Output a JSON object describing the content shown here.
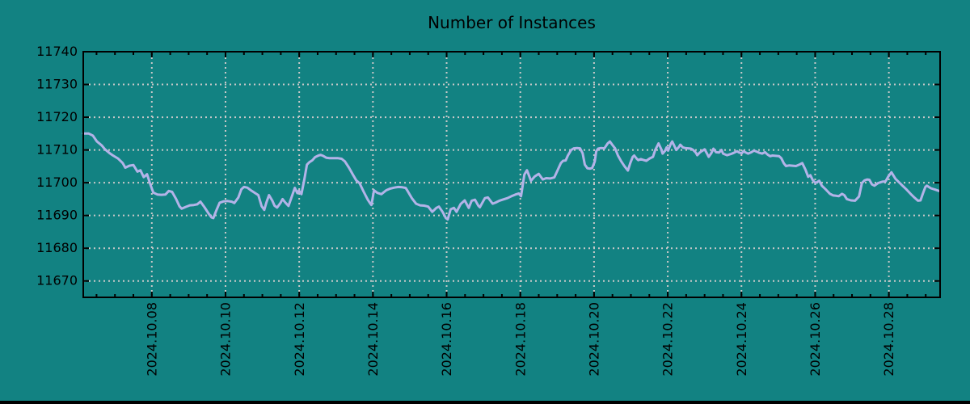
{
  "colors": {
    "background": "#128282",
    "line": "#b3b3e8",
    "grid": "#c9c9c9",
    "axis": "#000000",
    "text": "#000000"
  },
  "chart_data": {
    "type": "line",
    "title": "Number of Instances",
    "xlabel": "",
    "ylabel": "",
    "legend": "none",
    "grid": true,
    "x_unit": "decimal day of October 2024",
    "xlim": [
      6.14,
      29.39
    ],
    "ylim": [
      11665,
      11740
    ],
    "yticks": [
      {
        "value": 11670,
        "label": "11670"
      },
      {
        "value": 11680,
        "label": "11680"
      },
      {
        "value": 11690,
        "label": "11690"
      },
      {
        "value": 11700,
        "label": "11700"
      },
      {
        "value": 11710,
        "label": "11710"
      },
      {
        "value": 11720,
        "label": "11720"
      },
      {
        "value": 11730,
        "label": "11730"
      },
      {
        "value": 11740,
        "label": "11740"
      }
    ],
    "xticks": [
      {
        "value": 8,
        "label": "2024.10.08"
      },
      {
        "value": 10,
        "label": "2024.10.10"
      },
      {
        "value": 12,
        "label": "2024.10.12"
      },
      {
        "value": 14,
        "label": "2024.10.14"
      },
      {
        "value": 16,
        "label": "2024.10.16"
      },
      {
        "value": 18,
        "label": "2024.10.18"
      },
      {
        "value": 20,
        "label": "2024.10.20"
      },
      {
        "value": 22,
        "label": "2024.10.22"
      },
      {
        "value": 24,
        "label": "2024.10.24"
      },
      {
        "value": 26,
        "label": "2024.10.26"
      },
      {
        "value": 28,
        "label": "2024.10.28"
      }
    ],
    "minor_x_step": 0.5,
    "series": [
      {
        "name": "number-of-instances",
        "color": "#b3b3e8",
        "x": [
          6.14,
          6.29,
          6.4,
          6.51,
          6.64,
          6.73,
          6.86,
          6.95,
          7.08,
          7.21,
          7.28,
          7.39,
          7.5,
          7.61,
          7.69,
          7.78,
          7.87,
          7.96,
          8.04,
          8.15,
          8.26,
          8.37,
          8.46,
          8.55,
          8.66,
          8.75,
          8.81,
          8.92,
          9.03,
          9.14,
          9.23,
          9.32,
          9.43,
          9.54,
          9.62,
          9.67,
          9.75,
          9.84,
          9.95,
          10.06,
          10.17,
          10.24,
          10.35,
          10.43,
          10.5,
          10.59,
          10.7,
          10.81,
          10.89,
          10.98,
          11.05,
          11.11,
          11.18,
          11.27,
          11.33,
          11.4,
          11.49,
          11.55,
          11.62,
          11.71,
          11.79,
          11.88,
          11.95,
          11.99,
          12.06,
          12.14,
          12.21,
          12.28,
          12.36,
          12.43,
          12.52,
          12.58,
          12.65,
          12.74,
          12.82,
          12.93,
          13.04,
          13.15,
          13.24,
          13.35,
          13.46,
          13.55,
          13.64,
          13.75,
          13.86,
          13.92,
          13.96,
          14.03,
          14.12,
          14.23,
          14.36,
          14.47,
          14.58,
          14.69,
          14.8,
          14.89,
          14.95,
          15.06,
          15.17,
          15.28,
          15.39,
          15.5,
          15.61,
          15.72,
          15.79,
          15.89,
          15.98,
          16.03,
          16.11,
          16.2,
          16.27,
          16.38,
          16.49,
          16.6,
          16.68,
          16.77,
          16.86,
          16.9,
          17.04,
          17.12,
          17.25,
          17.34,
          17.43,
          17.54,
          17.65,
          17.76,
          17.87,
          17.96,
          18.02,
          18.11,
          18.18,
          18.29,
          18.39,
          18.5,
          18.61,
          18.7,
          18.81,
          18.92,
          19.01,
          19.1,
          19.16,
          19.23,
          19.29,
          19.38,
          19.45,
          19.54,
          19.62,
          19.69,
          19.75,
          19.82,
          19.89,
          19.95,
          20.02,
          20.06,
          20.11,
          20.19,
          20.28,
          20.37,
          20.43,
          20.5,
          20.57,
          20.65,
          20.74,
          20.83,
          20.92,
          20.98,
          21.05,
          21.09,
          21.16,
          21.2,
          21.27,
          21.33,
          21.42,
          21.51,
          21.6,
          21.66,
          21.75,
          21.82,
          21.86,
          21.93,
          21.97,
          22.01,
          22.08,
          22.12,
          22.19,
          22.23,
          22.3,
          22.34,
          22.41,
          22.47,
          22.56,
          22.63,
          22.69,
          22.76,
          22.8,
          22.87,
          22.93,
          23.0,
          23.07,
          23.11,
          23.18,
          23.24,
          23.31,
          23.39,
          23.46,
          23.5,
          23.61,
          23.72,
          23.79,
          23.88,
          23.94,
          24.01,
          24.05,
          24.12,
          24.18,
          24.27,
          24.34,
          24.43,
          24.49,
          24.56,
          24.64,
          24.71,
          24.78,
          24.84,
          24.93,
          25.02,
          25.08,
          25.15,
          25.21,
          25.3,
          25.39,
          25.48,
          25.57,
          25.65,
          25.74,
          25.81,
          25.87,
          25.94,
          26.01,
          26.07,
          26.11,
          26.18,
          26.29,
          26.4,
          26.49,
          26.57,
          26.64,
          26.73,
          26.79,
          26.86,
          26.97,
          27.08,
          27.19,
          27.27,
          27.34,
          27.41,
          27.47,
          27.54,
          27.61,
          27.71,
          27.82,
          27.91,
          27.98,
          28.07,
          28.18,
          28.26,
          28.37,
          28.48,
          28.59,
          28.7,
          28.79,
          28.86,
          28.92,
          28.99,
          29.03,
          29.14,
          29.25,
          29.36
        ],
        "y": [
          11715,
          11715,
          11714.4,
          11712.6,
          11711.4,
          11710.2,
          11709,
          11708.3,
          11707.4,
          11706,
          11704.6,
          11705.2,
          11705.4,
          11703.4,
          11703.8,
          11701.7,
          11702.6,
          11699.5,
          11697,
          11696.4,
          11696.3,
          11696.4,
          11697.5,
          11697.2,
          11695,
          11692.8,
          11692.1,
          11692.6,
          11693.1,
          11693.2,
          11693.4,
          11694.2,
          11692.5,
          11690.6,
          11689.4,
          11689.2,
          11691.5,
          11693.9,
          11694.3,
          11694.4,
          11694.2,
          11693.8,
          11695.5,
          11698,
          11698.7,
          11698.5,
          11697.6,
          11696.8,
          11696.2,
          11692.8,
          11691.7,
          11694,
          11696.2,
          11694.5,
          11693,
          11692.4,
          11693.8,
          11695,
          11694,
          11692.9,
          11695.5,
          11698.4,
          11696.8,
          11697.6,
          11696.5,
          11701,
          11705.5,
          11706.3,
          11706.9,
          11707.8,
          11708.3,
          11708.5,
          11708.2,
          11707.6,
          11707.5,
          11707.5,
          11707.5,
          11707.3,
          11706.5,
          11704.6,
          11702.4,
          11700.7,
          11699.8,
          11697.2,
          11694.8,
          11693.8,
          11693.2,
          11697.7,
          11696.9,
          11696.5,
          11697.7,
          11698.2,
          11698.5,
          11698.7,
          11698.6,
          11698.4,
          11697.3,
          11695.2,
          11693.6,
          11693.1,
          11693,
          11692.7,
          11691.1,
          11692.3,
          11692.7,
          11691.1,
          11689.2,
          11688.8,
          11691.9,
          11692.3,
          11691.1,
          11693.5,
          11694.6,
          11692.3,
          11694.5,
          11694.8,
          11693,
          11692.5,
          11695.3,
          11695.5,
          11693.6,
          11694,
          11694.5,
          11694.9,
          11695.3,
          11695.9,
          11696.4,
          11696.7,
          11695.9,
          11702.5,
          11703.8,
          11700.6,
          11701.9,
          11702.7,
          11701,
          11701.4,
          11701.3,
          11701.6,
          11703.8,
          11706,
          11706.7,
          11706.8,
          11708.3,
          11710,
          11710.5,
          11710.6,
          11710.5,
          11709,
          11705.5,
          11704.4,
          11704.3,
          11704.5,
          11706.5,
          11709.6,
          11710.4,
          11710.6,
          11710.5,
          11712,
          11712.6,
          11711.5,
          11710.5,
          11708.3,
          11706.5,
          11705,
          11703.7,
          11705.9,
          11707.9,
          11708.3,
          11707.3,
          11706.9,
          11707.2,
          11707,
          11706.7,
          11707.4,
          11707.9,
          11710,
          11712,
          11710.3,
          11708.9,
          11709.8,
          11710.8,
          11709.8,
          11711.8,
          11712.6,
          11711,
          11710,
          11710.9,
          11711.6,
          11710.8,
          11710.6,
          11710.5,
          11710.4,
          11710,
          11709.2,
          11708.4,
          11709.2,
          11709.7,
          11710.2,
          11708.8,
          11707.9,
          11709,
          11710.4,
          11709.3,
          11709.2,
          11710,
          11708.9,
          11708.4,
          11708.8,
          11709.1,
          11709.6,
          11709.2,
          11709,
          11709.6,
          11709.2,
          11708.9,
          11709.3,
          11709.8,
          11709.4,
          11709.1,
          11708.9,
          11709.3,
          11708.6,
          11708.1,
          11708.3,
          11708.2,
          11708.1,
          11707.5,
          11705.9,
          11705.1,
          11705.3,
          11705.2,
          11705.1,
          11705.5,
          11706,
          11703.9,
          11701.8,
          11702.3,
          11700.7,
          11699.9,
          11700.3,
          11700.6,
          11699.1,
          11697.9,
          11696.6,
          11696.1,
          11696,
          11695.9,
          11696.6,
          11696.2,
          11695,
          11694.6,
          11694.5,
          11695.8,
          11699.9,
          11700.7,
          11701,
          11700.9,
          11699.5,
          11699.1,
          11699.9,
          11700.3,
          11700.4,
          11701.8,
          11703.2,
          11701.2,
          11700.3,
          11699.1,
          11697.9,
          11696.6,
          11695.4,
          11694.5,
          11694.6,
          11696.6,
          11698.7,
          11699.1,
          11698.3,
          11697.9,
          11697.5
        ]
      }
    ]
  }
}
